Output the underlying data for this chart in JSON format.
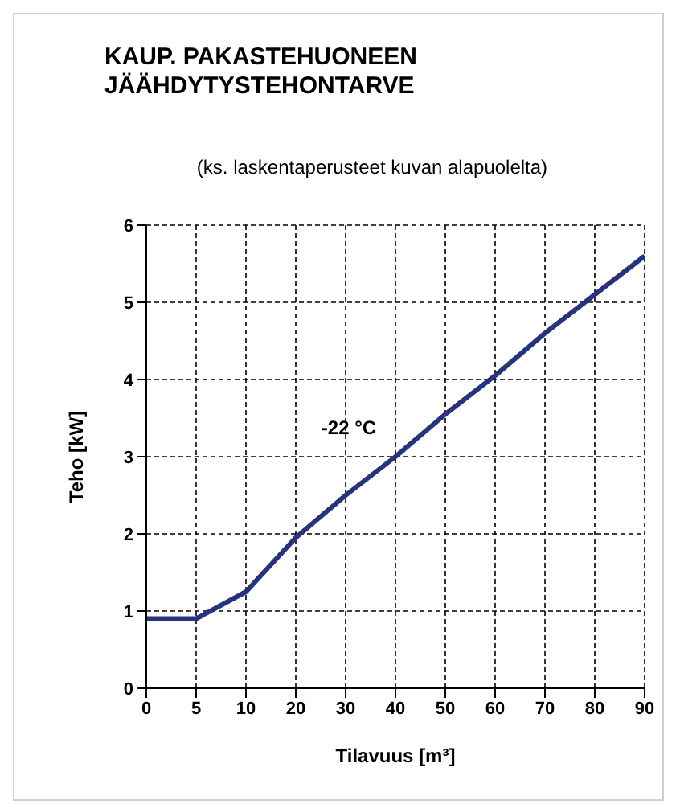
{
  "chart_data": {
    "type": "line",
    "title": "KAUP. PAKASTEHUONEEN JÄÄHDYTYSTEHONTARVE",
    "subtitle": "(ks. laskentaperusteet kuvan alapuolelta)",
    "xlabel": "Tilavuus [m³]",
    "ylabel": "Teho [kW]",
    "categories": [
      "0",
      "5",
      "10",
      "20",
      "30",
      "40",
      "50",
      "60",
      "70",
      "80",
      "90"
    ],
    "series": [
      {
        "name": "-22 °C",
        "color": "#27337a",
        "values": [
          0.9,
          0.9,
          1.25,
          1.95,
          2.5,
          3.0,
          3.55,
          4.05,
          4.6,
          5.1,
          5.6
        ]
      }
    ],
    "ylim": [
      0,
      6
    ],
    "yticks": [
      0,
      1,
      2,
      3,
      4,
      5,
      6
    ],
    "grid": true,
    "legend": false,
    "marker": "none"
  }
}
